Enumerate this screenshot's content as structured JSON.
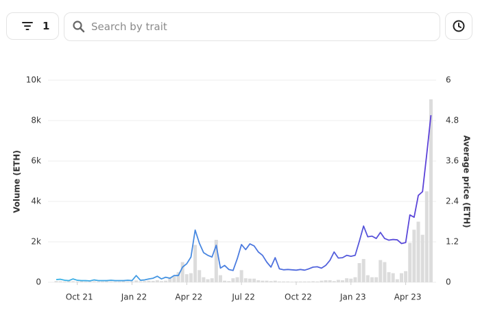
{
  "toolbar": {
    "filter_count": "1",
    "search_placeholder": "Search by trait"
  },
  "chart_data": {
    "type": "bar-line",
    "y_label": "Volume (ETH)",
    "y2_label": "Average price (ETH)",
    "categories": [
      null,
      null,
      null,
      null,
      null,
      "Oct 21",
      null,
      null,
      null,
      null,
      null,
      null,
      null,
      null,
      null,
      null,
      null,
      null,
      "Jan 22",
      null,
      null,
      null,
      null,
      null,
      null,
      null,
      null,
      null,
      null,
      null,
      null,
      "Apr 22",
      null,
      null,
      null,
      null,
      null,
      null,
      null,
      null,
      null,
      null,
      null,
      null,
      "Jul 22",
      null,
      null,
      null,
      null,
      null,
      null,
      null,
      null,
      null,
      null,
      null,
      null,
      "Oct 22",
      null,
      null,
      null,
      null,
      null,
      null,
      null,
      null,
      null,
      null,
      null,
      null,
      "Jan 23",
      null,
      null,
      null,
      null,
      null,
      null,
      null,
      null,
      null,
      null,
      null,
      null,
      "Apr 23",
      null,
      null,
      null,
      null,
      null,
      null
    ],
    "series": [
      {
        "name": "Volume",
        "color": "#dcdcdc",
        "values": [
          60,
          50,
          40,
          70,
          50,
          40,
          50,
          40,
          40,
          50,
          40,
          40,
          50,
          40,
          40,
          40,
          50,
          40,
          40,
          90,
          50,
          60,
          80,
          70,
          100,
          60,
          80,
          250,
          300,
          500,
          1000,
          400,
          450,
          1850,
          600,
          250,
          150,
          200,
          2100,
          350,
          80,
          60,
          200,
          250,
          600,
          200,
          180,
          180,
          100,
          80,
          80,
          60,
          80,
          40,
          40,
          40,
          30,
          40,
          40,
          40,
          40,
          50,
          40,
          80,
          100,
          100,
          60,
          120,
          100,
          200,
          180,
          250,
          950,
          1150,
          350,
          250,
          250,
          1100,
          1000,
          500,
          450,
          150,
          450,
          550,
          1950,
          2600,
          3000,
          2350,
          4500,
          9050
        ]
      },
      {
        "name": "Average price",
        "axis": "y2",
        "colors": [
          "#3ab4e6",
          "#5b3fd8"
        ],
        "values": [
          0.08,
          0.09,
          0.06,
          0.05,
          0.1,
          0.06,
          0.05,
          0.05,
          0.04,
          0.07,
          0.05,
          0.05,
          0.05,
          0.06,
          0.05,
          0.05,
          0.05,
          0.06,
          0.05,
          0.2,
          0.06,
          0.07,
          0.1,
          0.12,
          0.18,
          0.1,
          0.15,
          0.12,
          0.2,
          0.2,
          0.45,
          0.55,
          0.75,
          1.55,
          1.16,
          0.88,
          0.8,
          0.75,
          1.1,
          0.42,
          0.5,
          0.38,
          0.35,
          0.7,
          1.12,
          0.97,
          1.14,
          1.08,
          0.9,
          0.8,
          0.6,
          0.45,
          0.73,
          0.4,
          0.37,
          0.38,
          0.37,
          0.36,
          0.38,
          0.36,
          0.4,
          0.45,
          0.46,
          0.42,
          0.5,
          0.65,
          0.9,
          0.72,
          0.73,
          0.8,
          0.77,
          0.8,
          1.22,
          1.67,
          1.35,
          1.37,
          1.3,
          1.48,
          1.3,
          1.25,
          1.27,
          1.26,
          1.15,
          1.18,
          2.0,
          1.93,
          2.58,
          2.69,
          3.8,
          4.96
        ]
      }
    ],
    "ylim": [
      0,
      10000
    ],
    "yticks": [
      0,
      {
        "value": 2000,
        "label": "2k"
      },
      {
        "value": 4000,
        "label": "4k"
      },
      {
        "value": 6000,
        "label": "6k"
      },
      {
        "value": 8000,
        "label": "8k"
      },
      {
        "value": 10000,
        "label": "10k"
      }
    ],
    "y2lim": [
      0,
      6
    ],
    "y2ticks": [
      0,
      1.2,
      2.4,
      3.6,
      4.8,
      6
    ],
    "grid": true
  }
}
